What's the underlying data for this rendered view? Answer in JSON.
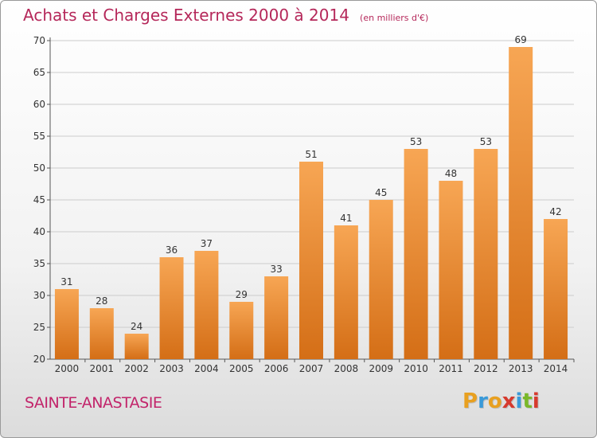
{
  "header": {
    "title": "Achats et Charges Externes 2000 à 2014",
    "subtitle": "(en milliers d'€)"
  },
  "footer": {
    "location": "SAINTE-ANASTASIE",
    "logo_text": "Proxiti"
  },
  "colors": {
    "title": "#b5285a",
    "bar_light": "#f7a654",
    "bar_dark": "#d46e16",
    "gridline": "#cccccc"
  },
  "chart_data": {
    "type": "bar",
    "title": "Achats et Charges Externes 2000 à 2014",
    "subtitle": "(en milliers d'€)",
    "categories": [
      "2000",
      "2001",
      "2002",
      "2003",
      "2004",
      "2005",
      "2006",
      "2007",
      "2008",
      "2009",
      "2010",
      "2011",
      "2012",
      "2013",
      "2014"
    ],
    "values": [
      31,
      28,
      24,
      36,
      37,
      29,
      33,
      51,
      41,
      45,
      53,
      48,
      53,
      69,
      42
    ],
    "ylim": [
      20,
      70
    ],
    "yticks": [
      20,
      25,
      30,
      35,
      40,
      45,
      50,
      55,
      60,
      65,
      70
    ],
    "grid": true,
    "data_labels": true
  }
}
